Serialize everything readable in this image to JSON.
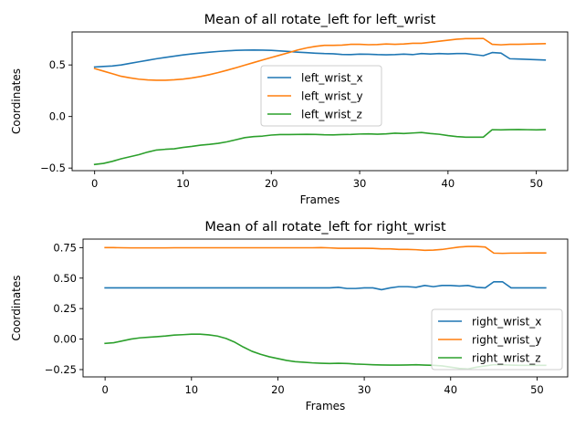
{
  "chart_data": [
    {
      "type": "line",
      "title": "Mean of all rotate_left for left_wrist",
      "xlabel": "Frames",
      "ylabel": "Coordinates",
      "xlim": [
        -2.55,
        53.55
      ],
      "ylim": [
        -0.525,
        0.82
      ],
      "xticks": [
        0,
        10,
        20,
        30,
        40,
        50
      ],
      "xtick_labels": [
        "0",
        "10",
        "20",
        "30",
        "40",
        "50"
      ],
      "yticks": [
        -0.5,
        0.0,
        0.5
      ],
      "ytick_labels": [
        "−0.5",
        "0.0",
        "0.5"
      ],
      "grid": false,
      "legend_position": "center",
      "x": [
        0,
        1,
        2,
        3,
        4,
        5,
        6,
        7,
        8,
        9,
        10,
        11,
        12,
        13,
        14,
        15,
        16,
        17,
        18,
        19,
        20,
        21,
        22,
        23,
        24,
        25,
        26,
        27,
        28,
        29,
        30,
        31,
        32,
        33,
        34,
        35,
        36,
        37,
        38,
        39,
        40,
        41,
        42,
        43,
        44,
        45,
        46,
        47,
        48,
        49,
        50,
        51
      ],
      "series": [
        {
          "name": "left_wrist_x",
          "color": "#1f77b4",
          "values": [
            0.48,
            0.485,
            0.49,
            0.5,
            0.515,
            0.53,
            0.545,
            0.56,
            0.573,
            0.585,
            0.597,
            0.607,
            0.616,
            0.624,
            0.631,
            0.637,
            0.641,
            0.644,
            0.645,
            0.644,
            0.641,
            0.636,
            0.63,
            0.624,
            0.619,
            0.614,
            0.61,
            0.608,
            0.602,
            0.6,
            0.605,
            0.604,
            0.6,
            0.598,
            0.6,
            0.605,
            0.6,
            0.61,
            0.606,
            0.61,
            0.607,
            0.61,
            0.61,
            0.6,
            0.59,
            0.62,
            0.615,
            0.56,
            0.557,
            0.554,
            0.551,
            0.548
          ]
        },
        {
          "name": "left_wrist_y",
          "color": "#ff7f0e",
          "values": [
            0.465,
            0.44,
            0.415,
            0.39,
            0.375,
            0.362,
            0.355,
            0.352,
            0.352,
            0.356,
            0.363,
            0.374,
            0.388,
            0.406,
            0.426,
            0.449,
            0.473,
            0.498,
            0.523,
            0.548,
            0.572,
            0.596,
            0.62,
            0.645,
            0.665,
            0.68,
            0.69,
            0.69,
            0.692,
            0.7,
            0.7,
            0.696,
            0.698,
            0.703,
            0.7,
            0.703,
            0.71,
            0.71,
            0.72,
            0.73,
            0.74,
            0.75,
            0.755,
            0.755,
            0.757,
            0.7,
            0.695,
            0.7,
            0.7,
            0.702,
            0.704,
            0.706
          ]
        },
        {
          "name": "left_wrist_z",
          "color": "#2ca02c",
          "values": [
            -0.465,
            -0.455,
            -0.435,
            -0.41,
            -0.39,
            -0.37,
            -0.345,
            -0.325,
            -0.318,
            -0.313,
            -0.3,
            -0.29,
            -0.278,
            -0.27,
            -0.26,
            -0.245,
            -0.225,
            -0.205,
            -0.195,
            -0.19,
            -0.18,
            -0.175,
            -0.175,
            -0.174,
            -0.173,
            -0.174,
            -0.177,
            -0.178,
            -0.175,
            -0.174,
            -0.17,
            -0.168,
            -0.172,
            -0.168,
            -0.162,
            -0.165,
            -0.16,
            -0.155,
            -0.165,
            -0.172,
            -0.185,
            -0.195,
            -0.2,
            -0.2,
            -0.2,
            -0.128,
            -0.13,
            -0.127,
            -0.126,
            -0.128,
            -0.13,
            -0.128
          ]
        }
      ]
    },
    {
      "type": "line",
      "title": "Mean of all rotate_left for right_wrist",
      "xlabel": "Frames",
      "ylabel": "Coordinates",
      "xlim": [
        -2.55,
        53.55
      ],
      "ylim": [
        -0.31,
        0.82
      ],
      "xticks": [
        0,
        10,
        20,
        30,
        40,
        50
      ],
      "xtick_labels": [
        "0",
        "10",
        "20",
        "30",
        "40",
        "50"
      ],
      "yticks": [
        -0.25,
        0.0,
        0.25,
        0.5,
        0.75
      ],
      "ytick_labels": [
        "−0.25",
        "0.00",
        "0.25",
        "0.50",
        "0.75"
      ],
      "grid": false,
      "legend_position": "lower right",
      "x": [
        0,
        1,
        2,
        3,
        4,
        5,
        6,
        7,
        8,
        9,
        10,
        11,
        12,
        13,
        14,
        15,
        16,
        17,
        18,
        19,
        20,
        21,
        22,
        23,
        24,
        25,
        26,
        27,
        28,
        29,
        30,
        31,
        32,
        33,
        34,
        35,
        36,
        37,
        38,
        39,
        40,
        41,
        42,
        43,
        44,
        45,
        46,
        47,
        48,
        49,
        50,
        51
      ],
      "series": [
        {
          "name": "right_wrist_x",
          "color": "#1f77b4",
          "values": [
            0.42,
            0.42,
            0.42,
            0.42,
            0.42,
            0.42,
            0.42,
            0.42,
            0.42,
            0.42,
            0.42,
            0.42,
            0.42,
            0.42,
            0.42,
            0.42,
            0.42,
            0.42,
            0.42,
            0.42,
            0.42,
            0.42,
            0.42,
            0.42,
            0.42,
            0.42,
            0.42,
            0.425,
            0.415,
            0.415,
            0.42,
            0.42,
            0.405,
            0.42,
            0.43,
            0.43,
            0.425,
            0.44,
            0.43,
            0.44,
            0.44,
            0.435,
            0.44,
            0.425,
            0.42,
            0.47,
            0.47,
            0.42,
            0.42,
            0.42,
            0.42,
            0.42
          ]
        },
        {
          "name": "right_wrist_y",
          "color": "#ff7f0e",
          "values": [
            0.75,
            0.75,
            0.749,
            0.748,
            0.748,
            0.748,
            0.748,
            0.748,
            0.749,
            0.749,
            0.749,
            0.749,
            0.749,
            0.749,
            0.749,
            0.749,
            0.749,
            0.749,
            0.749,
            0.749,
            0.749,
            0.749,
            0.749,
            0.749,
            0.749,
            0.75,
            0.748,
            0.745,
            0.745,
            0.745,
            0.745,
            0.744,
            0.74,
            0.74,
            0.735,
            0.735,
            0.733,
            0.728,
            0.73,
            0.735,
            0.745,
            0.755,
            0.76,
            0.76,
            0.755,
            0.705,
            0.703,
            0.705,
            0.705,
            0.706,
            0.706,
            0.706
          ]
        },
        {
          "name": "right_wrist_z",
          "color": "#2ca02c",
          "values": [
            -0.035,
            -0.03,
            -0.015,
            0.0,
            0.01,
            0.015,
            0.02,
            0.025,
            0.033,
            0.036,
            0.04,
            0.04,
            0.035,
            0.025,
            0.005,
            -0.025,
            -0.065,
            -0.1,
            -0.125,
            -0.145,
            -0.16,
            -0.175,
            -0.185,
            -0.19,
            -0.195,
            -0.198,
            -0.2,
            -0.198,
            -0.2,
            -0.205,
            -0.207,
            -0.21,
            -0.212,
            -0.213,
            -0.213,
            -0.212,
            -0.21,
            -0.213,
            -0.215,
            -0.22,
            -0.23,
            -0.24,
            -0.245,
            -0.23,
            -0.22,
            -0.21,
            -0.21,
            -0.213,
            -0.215,
            -0.215,
            -0.215,
            -0.215
          ]
        }
      ]
    }
  ]
}
